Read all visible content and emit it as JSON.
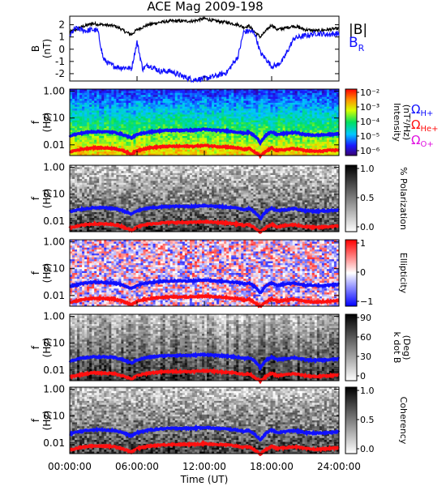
{
  "chart_data": {
    "title": "ACE Mag 2009-198",
    "type": "line",
    "x_axis": {
      "label": "Time (UT)",
      "range_hours": [
        0,
        24
      ],
      "tick_labels": [
        "00:00:00",
        "06:00:00",
        "12:00:00",
        "18:00:00",
        "24:00:00"
      ]
    },
    "panels": [
      {
        "id": "b-field",
        "type": "line",
        "ylabel": "B",
        "yunit": "(nT)",
        "ylim": [
          -2.6,
          2.7
        ],
        "y_ticks": [
          -2,
          -1,
          0,
          1,
          2
        ],
        "legend": [
          {
            "label": "|B|",
            "color": "#000000"
          },
          {
            "label": "B",
            "sub": "R",
            "color": "#1010ff"
          }
        ],
        "series": [
          {
            "name": "|B|",
            "color": "#000000",
            "x": [
              0,
              1,
              2,
              3,
              4,
              4.5,
              5,
              5.5,
              6,
              7,
              8,
              9,
              10,
              11,
              12,
              13,
              14,
              15,
              15.5,
              16,
              16.5,
              17,
              17.5,
              18,
              18.5,
              19,
              20,
              21,
              22,
              23,
              24
            ],
            "y": [
              1.4,
              1.8,
              2.1,
              2.0,
              1.9,
              1.7,
              1.4,
              1.2,
              1.6,
              2.0,
              2.2,
              2.3,
              2.3,
              2.3,
              2.5,
              2.3,
              2.2,
              2.0,
              1.8,
              1.9,
              1.4,
              1.0,
              1.5,
              2.0,
              1.6,
              1.7,
              1.9,
              1.6,
              1.5,
              1.6,
              1.7
            ]
          },
          {
            "name": "B_R",
            "color": "#1010ff",
            "x": [
              0,
              0.5,
              1,
              1.5,
              2,
              2.5,
              3,
              3.5,
              4,
              4.5,
              5,
              5.5,
              6,
              6.5,
              7,
              7.5,
              8,
              8.5,
              9,
              10,
              11,
              12,
              13,
              14,
              15,
              15.5,
              16,
              16.5,
              17,
              17.5,
              18,
              18.5,
              19,
              20,
              21,
              22,
              23,
              24
            ],
            "y": [
              1.1,
              1.7,
              1.6,
              1.5,
              1.6,
              1.5,
              -0.8,
              -1.2,
              -1.4,
              -1.5,
              -1.5,
              -1.6,
              0.6,
              -1.6,
              -1.3,
              -1.5,
              -1.8,
              -1.8,
              -1.8,
              -2.2,
              -2.5,
              -2.4,
              -2.2,
              -1.9,
              -0.6,
              1.4,
              1.5,
              1.3,
              -0.3,
              -0.8,
              -1.4,
              -1.3,
              -0.9,
              0.9,
              1.1,
              1.3,
              1.2,
              1.3
            ]
          }
        ]
      },
      {
        "id": "intensity",
        "type": "heatmap",
        "ylabel": "f",
        "yunit": "(Hz)",
        "y_scale": "log",
        "ylim_hz": [
          0.004,
          1.2
        ],
        "y_tick_labels": [
          "1.00",
          "0.10",
          "0.01"
        ],
        "colorbar": {
          "label": "Intensity",
          "unit": "(nT²/Hz)",
          "palette": "rainbow",
          "tick_labels": [
            "10⁻²",
            "10⁻³",
            "10⁻⁴",
            "10⁻⁵",
            "10⁻⁶"
          ]
        },
        "legend": [
          {
            "symbol": "Ω",
            "sub": "H+",
            "color": "#1010ff"
          },
          {
            "symbol": "Ω",
            "sub": "He+",
            "color": "#ff1010"
          },
          {
            "symbol": "Ω",
            "sub": "O+",
            "color": "#e010e0"
          }
        ]
      },
      {
        "id": "polarization",
        "type": "heatmap",
        "ylabel": "f",
        "yunit": "(Hz)",
        "y_scale": "log",
        "y_tick_labels": [
          "1.00",
          "0.10",
          "0.01"
        ],
        "colorbar": {
          "label": "% Polarization",
          "palette": "grey",
          "tick_labels": [
            "1.0",
            "0.5",
            "0.0"
          ]
        }
      },
      {
        "id": "ellipticity",
        "type": "heatmap",
        "ylabel": "f",
        "yunit": "(Hz)",
        "y_scale": "log",
        "y_tick_labels": [
          "1.00",
          "0.10",
          "0.01"
        ],
        "colorbar": {
          "label": "Ellipticity",
          "palette": "blue-white-red",
          "tick_labels": [
            "1",
            "0",
            "−1"
          ]
        }
      },
      {
        "id": "kdotb",
        "type": "heatmap",
        "ylabel": "f",
        "yunit": "(Hz)",
        "y_scale": "log",
        "y_tick_labels": [
          "1.00",
          "0.10",
          "0.01"
        ],
        "colorbar": {
          "label": "k dot B",
          "unit": "(Deg)",
          "palette": "grey",
          "tick_labels": [
            "90",
            "60",
            "30",
            "0"
          ]
        }
      },
      {
        "id": "coherency",
        "type": "heatmap",
        "ylabel": "f",
        "yunit": "(Hz)",
        "y_scale": "log",
        "y_tick_labels": [
          "1.00",
          "0.10",
          "0.01"
        ],
        "colorbar": {
          "label": "Coherency",
          "palette": "grey",
          "tick_labels": [
            "1.0",
            "0.5",
            "0.0"
          ]
        }
      }
    ],
    "gyrofrequency_overlays": {
      "x": [
        0,
        1,
        2,
        3,
        4,
        4.5,
        5,
        5.5,
        6,
        7,
        8,
        9,
        10,
        11,
        12,
        13,
        14,
        15,
        15.5,
        16,
        16.5,
        17,
        17.5,
        18,
        18.5,
        19,
        20,
        21,
        22,
        23,
        24
      ],
      "H+": {
        "color": "#1010ff",
        "f_hz": [
          0.022,
          0.027,
          0.031,
          0.031,
          0.029,
          0.026,
          0.022,
          0.018,
          0.024,
          0.03,
          0.033,
          0.035,
          0.035,
          0.035,
          0.038,
          0.035,
          0.033,
          0.03,
          0.027,
          0.029,
          0.021,
          0.012,
          0.023,
          0.03,
          0.024,
          0.026,
          0.029,
          0.024,
          0.023,
          0.024,
          0.026
        ]
      },
      "He+": {
        "color": "#ff1010",
        "f_hz": [
          0.0055,
          0.0068,
          0.0078,
          0.0077,
          0.0073,
          0.0065,
          0.0055,
          0.0045,
          0.0061,
          0.0076,
          0.0084,
          0.0088,
          0.0088,
          0.0088,
          0.0095,
          0.0088,
          0.0084,
          0.0076,
          0.0068,
          0.0073,
          0.0053,
          0.0038,
          0.0057,
          0.0076,
          0.0061,
          0.0065,
          0.0073,
          0.0061,
          0.0057,
          0.0061,
          0.0065
        ]
      }
    }
  }
}
